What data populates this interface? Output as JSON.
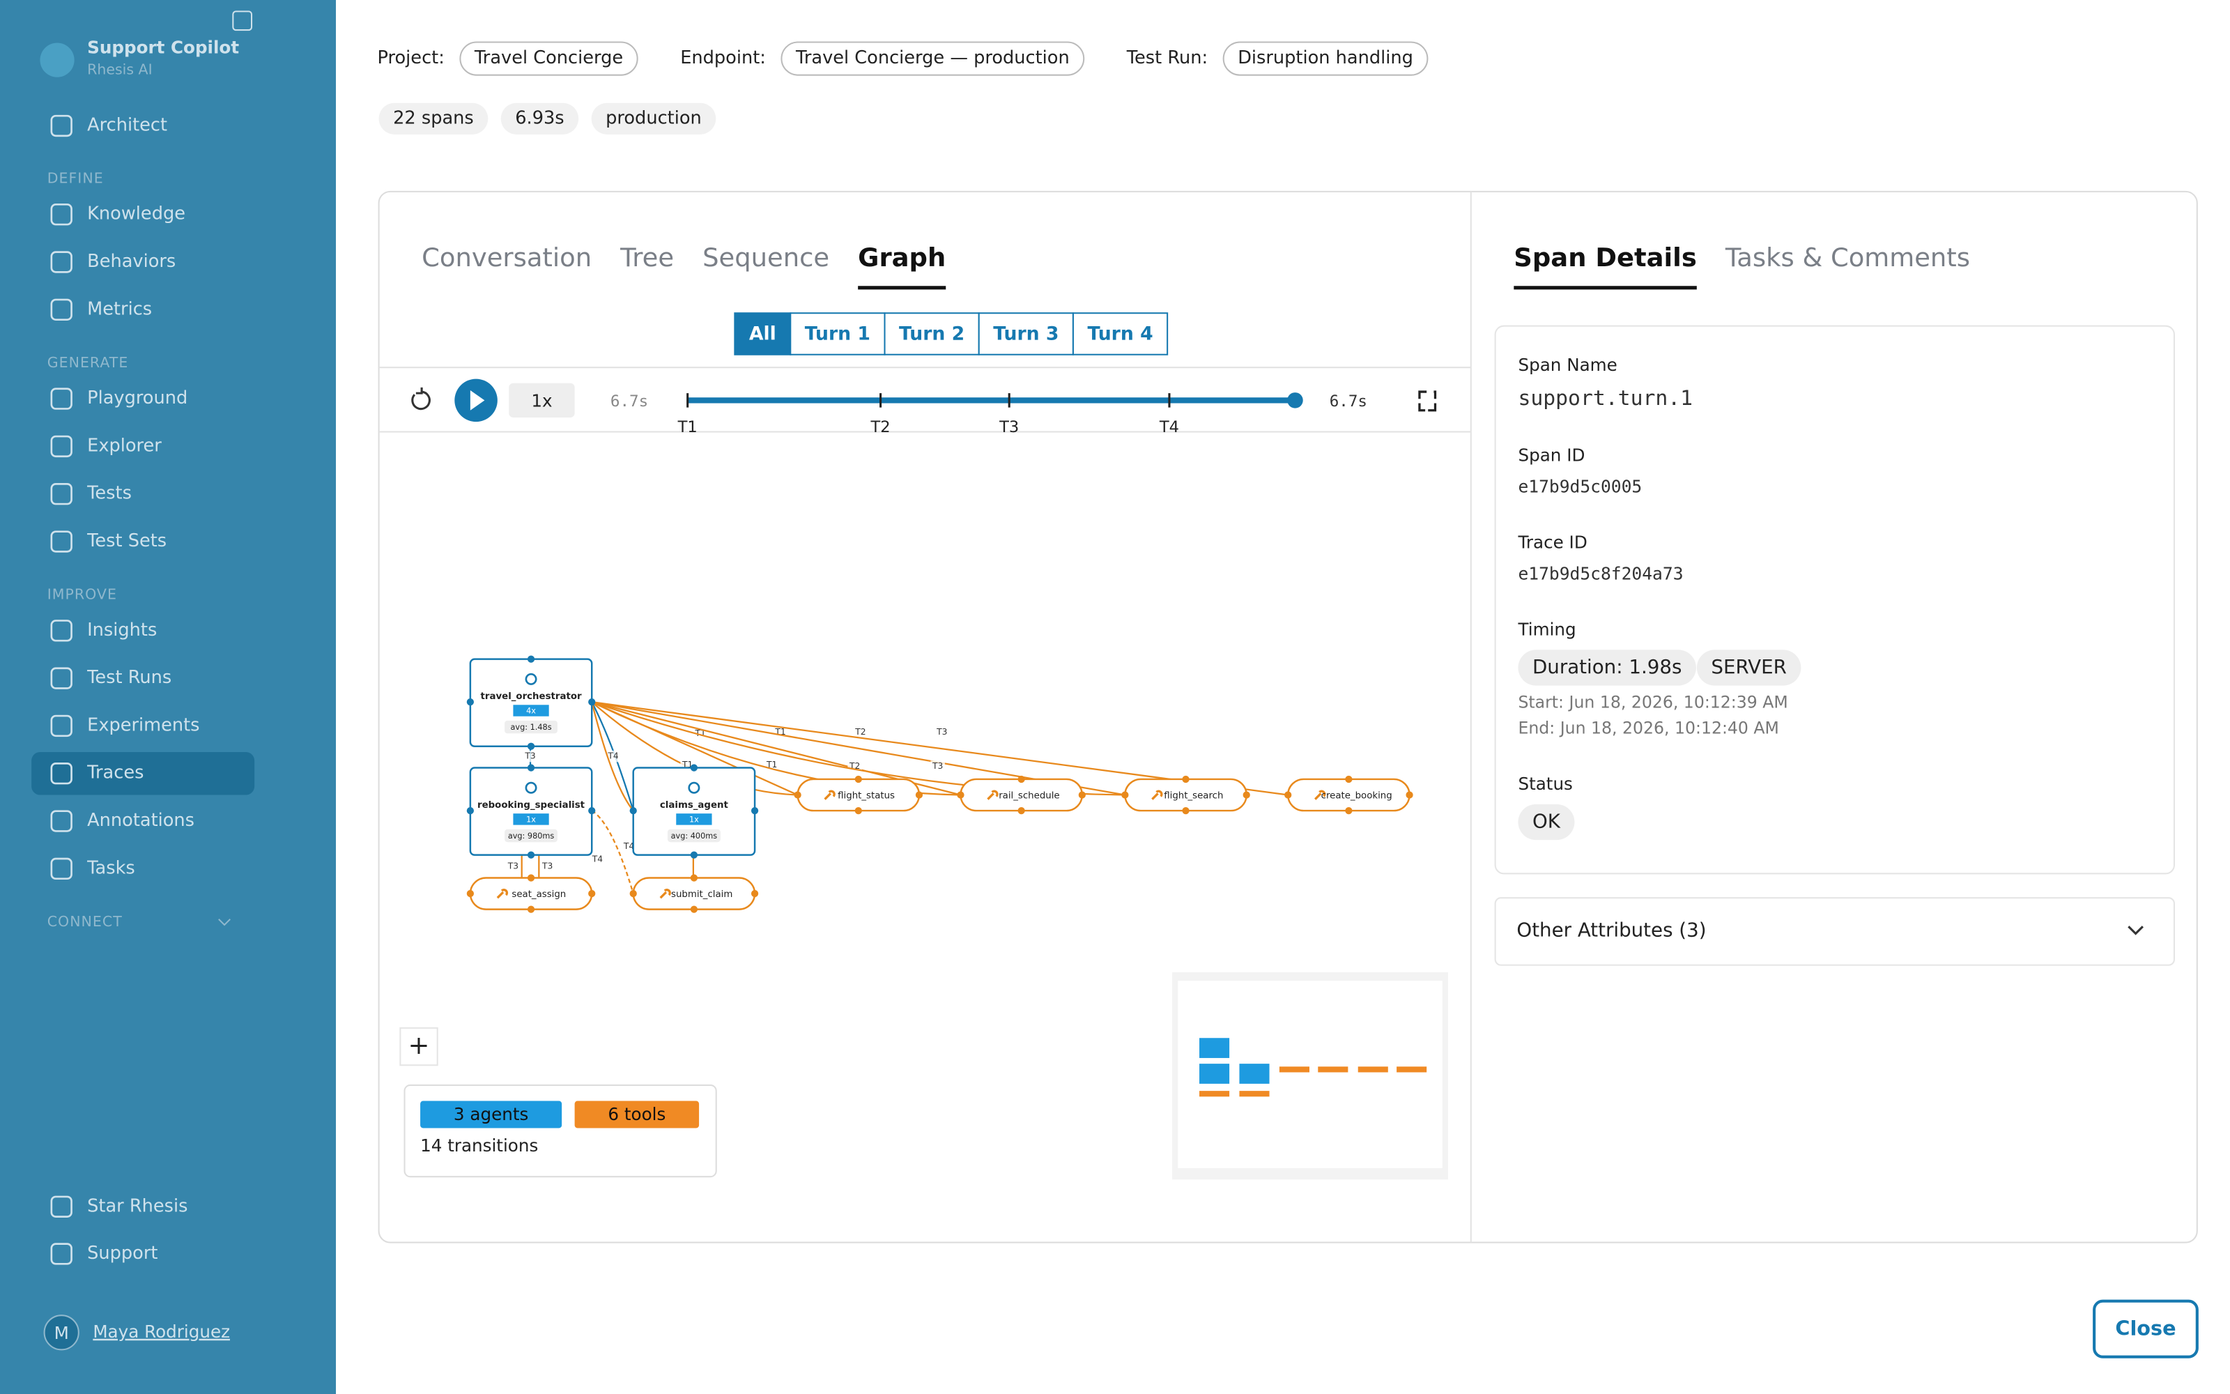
{
  "sidebar": {
    "app_name": "Support Copilot",
    "org": "Rhesis AI",
    "top_item": "Architect",
    "sections": [
      {
        "label": "DEFINE",
        "items": [
          "Knowledge",
          "Behaviors",
          "Metrics"
        ]
      },
      {
        "label": "GENERATE",
        "items": [
          "Playground",
          "Explorer",
          "Tests",
          "Test Sets"
        ]
      },
      {
        "label": "IMPROVE",
        "items": [
          "Insights",
          "Test Runs",
          "Experiments",
          "Traces",
          "Annotations",
          "Tasks"
        ]
      },
      {
        "label": "CONNECT",
        "items": []
      }
    ],
    "active_item": "Traces",
    "footer_items": [
      "Star Rhesis",
      "Support"
    ],
    "user": {
      "initial": "M",
      "name": "Maya Rodriguez"
    }
  },
  "header": {
    "filters": [
      {
        "label": "Project:",
        "value": "Travel Concierge"
      },
      {
        "label": "Endpoint:",
        "value": "Travel Concierge — production"
      },
      {
        "label": "Test Run:",
        "value": "Disruption handling"
      }
    ],
    "badges": [
      "22 spans",
      "6.93s",
      "production"
    ]
  },
  "trace_view": {
    "tabs": [
      "Conversation",
      "Tree",
      "Sequence",
      "Graph"
    ],
    "active_tab": "Graph",
    "turn_filters": [
      "All",
      "Turn 1",
      "Turn 2",
      "Turn 3",
      "Turn 4"
    ],
    "active_filter": "All",
    "playback": {
      "speed": "1x",
      "start_time": "6.7s",
      "end_time": "6.7s",
      "markers": [
        "T1",
        "T2",
        "T3",
        "T4"
      ]
    },
    "graph": {
      "agents": [
        {
          "name": "travel_orchestrator",
          "count": "4x",
          "avg": "avg: 1.48s"
        },
        {
          "name": "rebooking_specialist",
          "count": "1x",
          "avg": "avg: 980ms"
        },
        {
          "name": "claims_agent",
          "count": "1x",
          "avg": "avg: 400ms"
        }
      ],
      "tools": [
        "flight_status",
        "rail_schedule",
        "flight_search",
        "create_booking",
        "seat_assign",
        "submit_claim"
      ],
      "edge_labels": [
        "T1",
        "T1",
        "T2",
        "T3",
        "T1",
        "T2",
        "T3",
        "T4",
        "T1",
        "T3",
        "T3",
        "T3",
        "T4",
        "T4"
      ]
    },
    "zoom_in": "+",
    "legend": {
      "agents": "3 agents",
      "tools": "6 tools",
      "transitions": "14 transitions"
    }
  },
  "span_panel": {
    "tabs": [
      "Span Details",
      "Tasks & Comments"
    ],
    "active_tab": "Span Details",
    "fields": [
      {
        "label": "Span Name",
        "value": "support.turn.1"
      },
      {
        "label": "Span ID",
        "value": "e17b9d5c0005"
      },
      {
        "label": "Trace ID",
        "value": "e17b9d5c8f204a73"
      }
    ],
    "timing": {
      "label": "Timing",
      "duration": "Duration: 1.98s",
      "kind": "SERVER",
      "start": "Start: Jun 18, 2026, 10:12:39 AM",
      "end": "End: Jun 18, 2026, 10:12:40 AM"
    },
    "status": {
      "label": "Status",
      "value": "OK"
    },
    "other_attributes": "Other Attributes (3)"
  },
  "close": "Close"
}
